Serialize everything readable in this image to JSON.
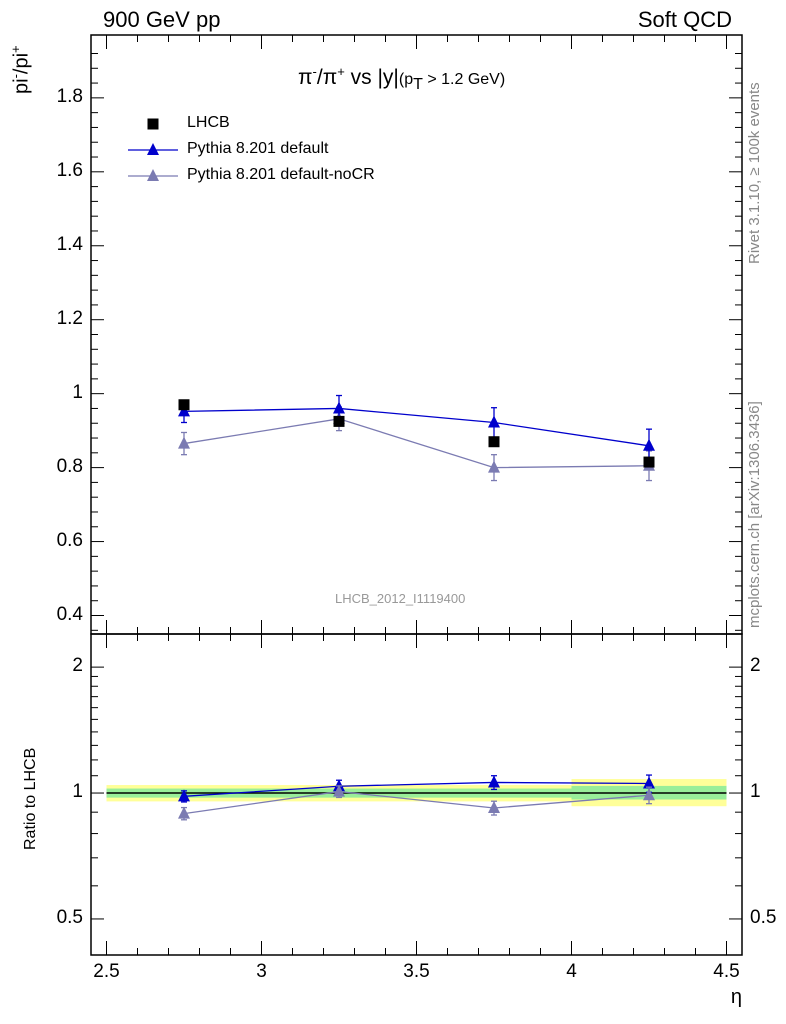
{
  "header": {
    "left": "900 GeV pp",
    "right": "Soft QCD"
  },
  "side_text": {
    "rivet": "Rivet 3.1.10, ≥ 100k events",
    "mcplots": "mcplots.cern.ch [arXiv:1306.3436]"
  },
  "watermark": "LHCB_2012_I1119400",
  "chart_data": [
    {
      "type": "line",
      "panel": "main",
      "title": "π⁻/π⁺ vs |y| (p_T > 1.2 GeV)",
      "title_parts": {
        "pi": "π",
        "minus": "-",
        "plus": "+",
        "vs": " vs |y|",
        "cut_p": "(p",
        "cut_T": "T",
        "cut_rest": " > 1.2 GeV)"
      },
      "ylabel": "pi⁻/pi⁺",
      "ylabel_parts": {
        "a": "pi",
        "sup1": "-",
        "b": "/pi",
        "sup2": "+"
      },
      "xlabel": "η",
      "xlim": [
        2.45,
        4.55
      ],
      "ylim": [
        0.35,
        1.97
      ],
      "yticks": [
        "0.4",
        "0.6",
        "0.8",
        "1",
        "1.2",
        "1.4",
        "1.6",
        "1.8"
      ],
      "x": [
        2.75,
        3.25,
        3.75,
        4.25
      ],
      "legend_position": "top-left",
      "series": [
        {
          "name": "LHCB",
          "color": "#000000",
          "marker": "square",
          "values": [
            0.97,
            0.925,
            0.87,
            0.815
          ],
          "errors": [
            0.005,
            0.005,
            0.005,
            0.005
          ]
        },
        {
          "name": "Pythia 8.201 default",
          "color": "#0000cc",
          "marker": "triangle",
          "values": [
            0.952,
            0.96,
            0.922,
            0.859
          ],
          "errors": [
            0.03,
            0.035,
            0.04,
            0.045
          ]
        },
        {
          "name": "Pythia 8.201 default-noCR",
          "color": "#7b7bb2",
          "marker": "triangle",
          "values": [
            0.865,
            0.932,
            0.8,
            0.805
          ],
          "errors": [
            0.03,
            0.032,
            0.035,
            0.04
          ]
        }
      ]
    },
    {
      "type": "line",
      "panel": "ratio",
      "ylabel": "Ratio to LHCB",
      "xlabel": "η",
      "xlim": [
        2.45,
        4.55
      ],
      "ylim": [
        0.41,
        2.4
      ],
      "y_scale": "log",
      "yticks": [
        "0.5",
        "1",
        "2"
      ],
      "xticks": [
        "2.5",
        "3",
        "3.5",
        "4",
        "4.5"
      ],
      "x": [
        2.75,
        3.25,
        3.75,
        4.25
      ],
      "reference_bands": [
        {
          "xmin": 2.5,
          "xmax": 4.0,
          "yellow": [
            0.955,
            1.045
          ],
          "green": [
            0.975,
            1.025
          ]
        },
        {
          "xmin": 4.0,
          "xmax": 4.5,
          "yellow": [
            0.93,
            1.08
          ],
          "green": [
            0.965,
            1.04
          ]
        }
      ],
      "series": [
        {
          "name": "Pythia 8.201 default",
          "color": "#0000cc",
          "values": [
            0.982,
            1.038,
            1.06,
            1.054
          ],
          "errors": [
            0.03,
            0.035,
            0.04,
            0.05
          ]
        },
        {
          "name": "Pythia 8.201 default-noCR",
          "color": "#7b7bb2",
          "values": [
            0.893,
            1.008,
            0.921,
            0.988
          ],
          "errors": [
            0.03,
            0.032,
            0.035,
            0.045
          ]
        }
      ]
    }
  ]
}
